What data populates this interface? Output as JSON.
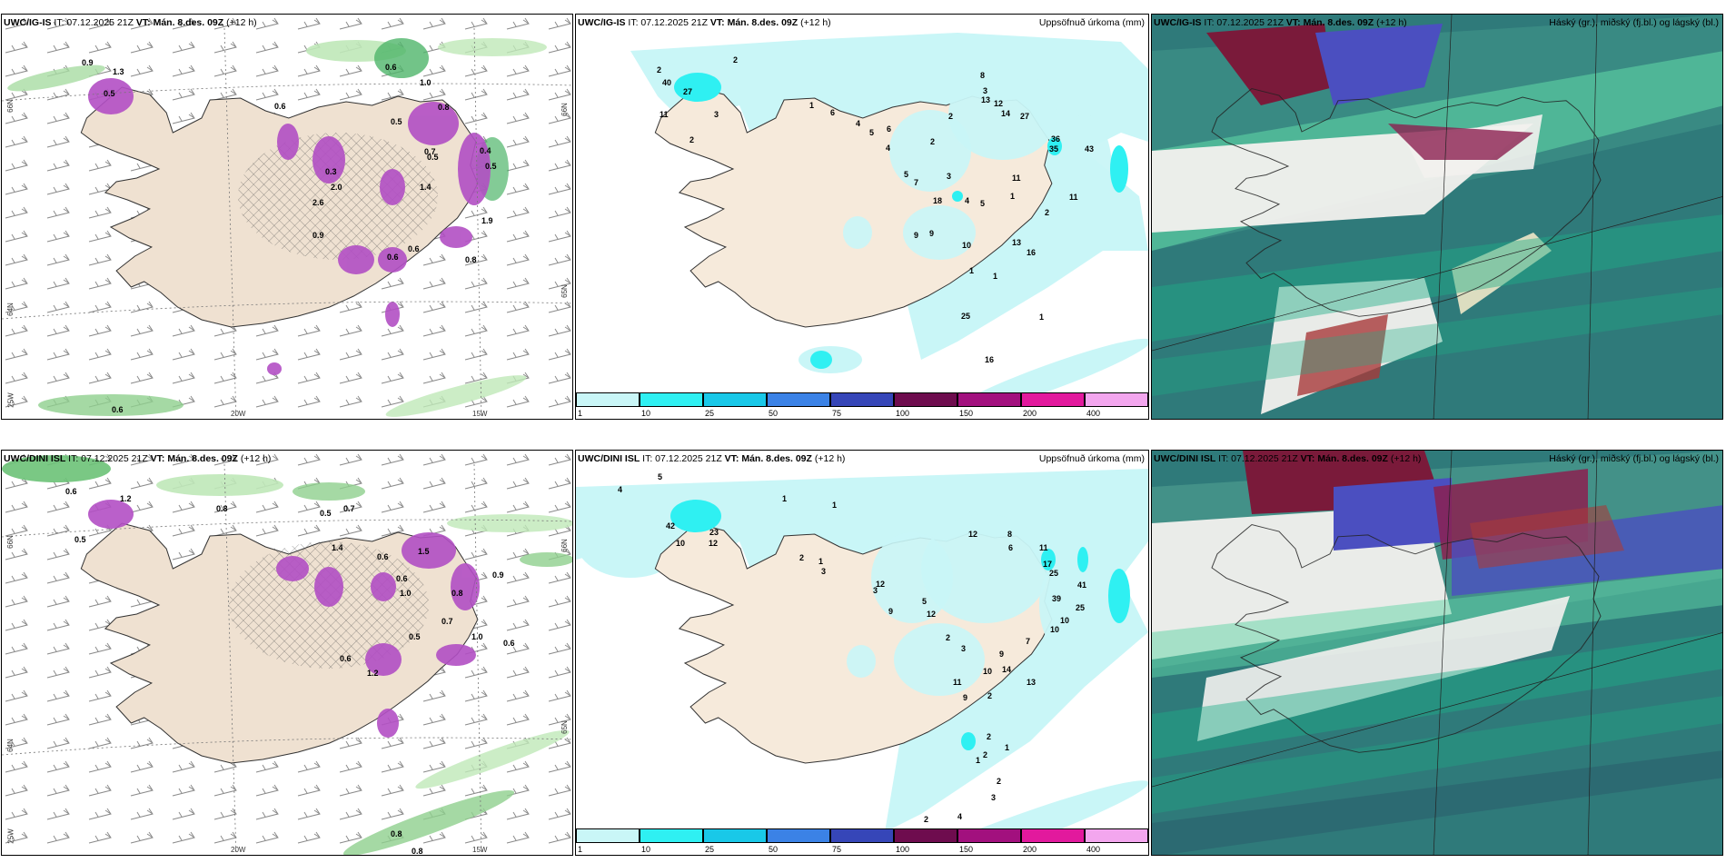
{
  "rows": [
    {
      "model": "UWC/IG-IS",
      "it": " IT: 07.12.2025 21Z ",
      "vt": "VT: Mán. 8.des. 09Z",
      "lead": " (+12 h)",
      "precip_title": "Uppsöfnuð úrkoma (mm)",
      "cloud_title": "Háský (gr.), miðský (fj.bl.) og lágský (bl.)",
      "left_labels": [
        "0.9",
        "1.3",
        "0.5",
        "0.6",
        "0.6",
        "1.0",
        "0.8",
        "0.5",
        "0.3",
        "2.0",
        "2.6",
        "1.4",
        "0.7",
        "0.5",
        "0.4",
        "1.9",
        "0.5",
        "0.6",
        "0.9",
        "0.6",
        "0.8",
        "0.6"
      ],
      "precip_labels": [
        "2",
        "2",
        "40",
        "27",
        "11",
        "3",
        "2",
        "1",
        "8",
        "3",
        "13",
        "12",
        "14",
        "27",
        "6",
        "4",
        "5",
        "6",
        "4",
        "2",
        "2",
        "36",
        "35",
        "43",
        "5",
        "7",
        "3",
        "11",
        "18",
        "4",
        "5",
        "9",
        "9",
        "10",
        "13",
        "16",
        "11",
        "2",
        "1",
        "1",
        "1",
        "1",
        "16",
        "25"
      ],
      "lat_top": "66N",
      "lat_bottom": "64N",
      "lat_mid": "65N",
      "lon_left": "20W",
      "lon_right": "15W",
      "lat_corner": "25W"
    },
    {
      "model": "UWC/DINI ISL",
      "it": " IT: 07.12.2025 21Z ",
      "vt": "VT: Mán. 8.des. 09Z",
      "lead": " (+12 h)",
      "precip_title": "Uppsöfnuð úrkoma (mm)",
      "cloud_title": "Háský (gr.), miðský (fj.bl.) og lágský (bl.)",
      "left_labels": [
        "0.6",
        "1.2",
        "0.5",
        "0.8",
        "0.5",
        "0.7",
        "0.6",
        "1.4",
        "1.5",
        "0.6",
        "1.0",
        "0.8",
        "0.6",
        "1.2",
        "0.5",
        "1.0",
        "0.7",
        "0.6",
        "0.9",
        "0.8",
        "0.8"
      ],
      "precip_labels": [
        "4",
        "5",
        "1",
        "1",
        "42",
        "23",
        "10",
        "12",
        "2",
        "1",
        "3",
        "12",
        "8",
        "6",
        "11",
        "17",
        "25",
        "39",
        "41",
        "25",
        "10",
        "10",
        "7",
        "12",
        "3",
        "5",
        "9",
        "12",
        "2",
        "3",
        "9",
        "14",
        "13",
        "11",
        "9",
        "10",
        "2",
        "2",
        "2",
        "1",
        "1",
        "2",
        "3",
        "4",
        "2"
      ],
      "lat_top": "66N",
      "lat_bottom": "64N",
      "lat_mid": "65N",
      "lon_left": "20W",
      "lon_right": "15W",
      "lat_corner": "25W"
    }
  ],
  "colorbar": {
    "ticks": [
      "1",
      "10",
      "25",
      "50",
      "75",
      "100",
      "150",
      "200",
      "400"
    ],
    "colors": [
      "#c9f6f7",
      "#2ff0f2",
      "#19c8e8",
      "#3b82e6",
      "#3646b8",
      "#6e0c4e",
      "#a2107e",
      "#e2199d",
      "#f3a6ee"
    ]
  }
}
